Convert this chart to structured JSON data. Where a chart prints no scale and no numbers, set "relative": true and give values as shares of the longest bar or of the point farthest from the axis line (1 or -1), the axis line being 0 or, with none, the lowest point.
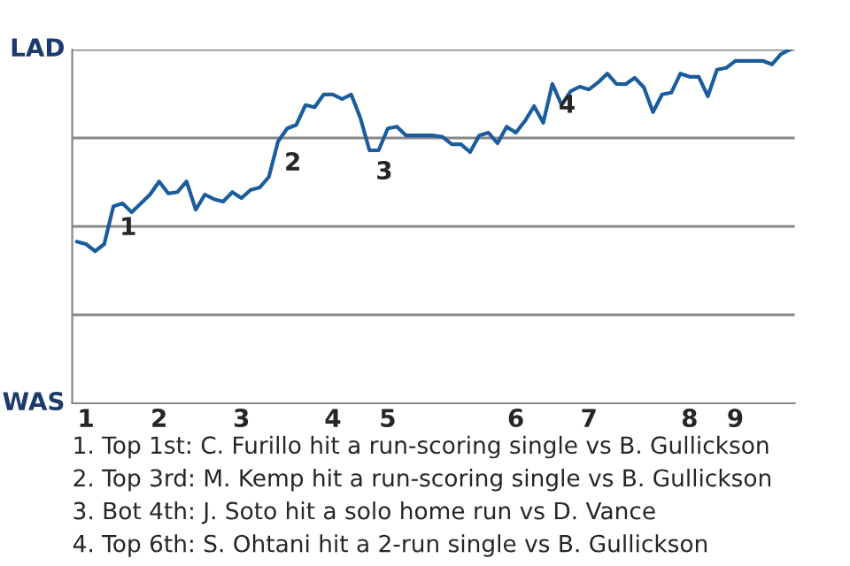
{
  "chart_data": {
    "type": "line",
    "relative": true,
    "categories": [
      null,
      "1",
      null,
      null,
      null,
      null,
      null,
      null,
      null,
      "2",
      null,
      null,
      null,
      null,
      null,
      null,
      null,
      null,
      "3",
      null,
      null,
      null,
      null,
      null,
      null,
      null,
      null,
      null,
      "4",
      null,
      null,
      null,
      null,
      null,
      "5",
      null,
      null,
      null,
      null,
      null,
      null,
      null,
      null,
      null,
      null,
      null,
      null,
      null,
      "6",
      null,
      null,
      null,
      null,
      null,
      null,
      null,
      "7",
      null,
      null,
      null,
      null,
      null,
      null,
      null,
      null,
      null,
      null,
      "8",
      null,
      null,
      null,
      null,
      "9",
      null,
      null,
      null,
      null,
      null,
      null
    ],
    "series": [
      {
        "color": "#1a5c9e",
        "values": [
          0.457,
          0.45,
          0.43,
          0.45,
          0.557,
          0.565,
          0.54,
          0.565,
          0.59,
          0.627,
          0.593,
          0.597,
          0.627,
          0.547,
          0.59,
          0.577,
          0.57,
          0.597,
          0.58,
          0.603,
          0.61,
          0.64,
          0.74,
          0.777,
          0.787,
          0.843,
          0.837,
          0.873,
          0.873,
          0.86,
          0.873,
          0.807,
          0.715,
          0.715,
          0.777,
          0.782,
          0.757,
          0.757,
          0.757,
          0.757,
          0.753,
          0.732,
          0.732,
          0.71,
          0.757,
          0.765,
          0.735,
          0.782,
          0.765,
          0.798,
          0.84,
          0.793,
          0.903,
          0.843,
          0.882,
          0.895,
          0.887,
          0.907,
          0.932,
          0.903,
          0.902,
          0.92,
          0.893,
          0.823,
          0.873,
          0.878,
          0.932,
          0.923,
          0.923,
          0.868,
          0.943,
          0.948,
          0.968,
          0.968,
          0.968,
          0.968,
          0.958,
          0.987,
          1.0
        ]
      }
    ],
    "ref_lines": [
      {
        "axis": "y",
        "value": 0.25,
        "color": "#888888"
      },
      {
        "axis": "y",
        "value": 0.5,
        "color": "#888888"
      },
      {
        "axis": "y",
        "value": 0.75,
        "color": "#888888"
      },
      {
        "axis": "y",
        "value": 1,
        "color": "#888888"
      }
    ],
    "annotations": [
      "LAD",
      "WAS",
      {
        "text": "1",
        "y": 0.557
      },
      {
        "text": "2",
        "y": 0.74
      },
      {
        "text": "3",
        "y": 0.715
      },
      {
        "text": "4",
        "y": 0.903
      },
      "1. Top 1st: C. Furillo hit a run-scoring single vs B. Gullickson",
      "2. Top 3rd: M. Kemp hit a run-scoring single vs B. Gullickson",
      "3. Bot 4th: J. Soto hit a solo home run vs D. Vance",
      "4. Top 6th: S. Ohtani hit a 2-run single vs B. Gullickson"
    ]
  }
}
